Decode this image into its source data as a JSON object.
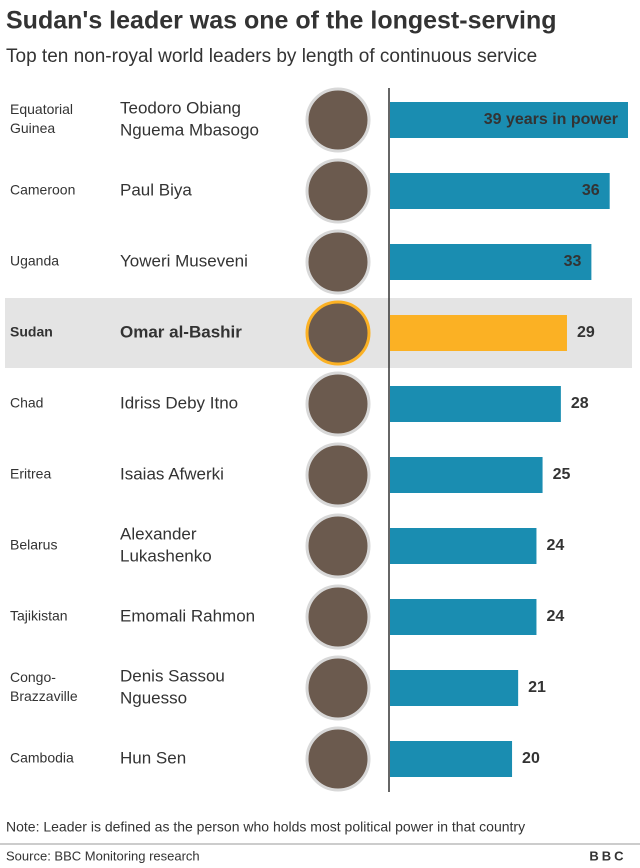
{
  "chart_data": {
    "type": "bar",
    "title": "Sudan's leader was one of the longest-serving",
    "subtitle": "Top ten non-royal world leaders by length of continuous service",
    "categories": [
      [
        "Equatorial",
        "Guinea"
      ],
      [
        "Cameroon"
      ],
      [
        "Uganda"
      ],
      [
        "Sudan"
      ],
      [
        "Chad"
      ],
      [
        "Eritrea"
      ],
      [
        "Belarus"
      ],
      [
        "Tajikistan"
      ],
      [
        "Congo-",
        "Brazzaville"
      ],
      [
        "Cambodia"
      ]
    ],
    "leaders": [
      [
        "Teodoro Obiang",
        "Nguema Mbasogo"
      ],
      [
        "Paul Biya"
      ],
      [
        "Yoweri Museveni"
      ],
      [
        "Omar al-Bashir"
      ],
      [
        "Idriss Deby Itno"
      ],
      [
        "Isaias Afwerki"
      ],
      [
        "Alexander",
        "Lukashenko"
      ],
      [
        "Emomali Rahmon"
      ],
      [
        "Denis Sassou",
        "Nguesso"
      ],
      [
        "Hun Sen"
      ]
    ],
    "values": [
      39,
      36,
      33,
      29,
      28,
      25,
      24,
      24,
      21,
      20
    ],
    "value_labels": [
      "39 years in power",
      "36",
      "33",
      "29",
      "28",
      "25",
      "24",
      "24",
      "21",
      "20"
    ],
    "color": "#1a8db1",
    "colors": [
      "#1a8db1",
      "#1a8db1",
      "#1a8db1",
      "#fbb124",
      "#1a8db1",
      "#1a8db1",
      "#1a8db1",
      "#1a8db1",
      "#1a8db1",
      "#1a8db1"
    ],
    "xlim": [
      0,
      39
    ],
    "note": "Note: Leader is defined as the person who holds most political power in that country",
    "source": "Source: BBC Monitoring research",
    "logo": "BBC"
  }
}
